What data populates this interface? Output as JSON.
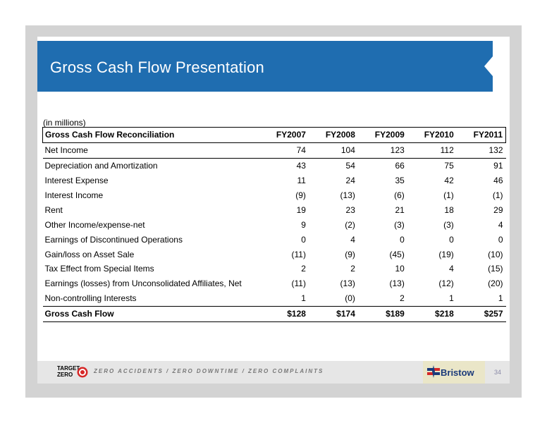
{
  "title": "Gross Cash Flow Presentation",
  "units_note": "(in millions)",
  "table": {
    "header": {
      "label": "Gross Cash Flow Reconciliation",
      "years": [
        "FY2007",
        "FY2008",
        "FY2009",
        "FY2010",
        "FY2011"
      ]
    },
    "rows": [
      {
        "label": "Net Income",
        "values": [
          "74",
          "104",
          "123",
          "112",
          "132"
        ]
      },
      {
        "label": "Depreciation and Amortization",
        "values": [
          "43",
          "54",
          "66",
          "75",
          "91"
        ]
      },
      {
        "label": "Interest Expense",
        "values": [
          "11",
          "24",
          "35",
          "42",
          "46"
        ]
      },
      {
        "label": "Interest Income",
        "values": [
          "(9)",
          "(13)",
          "(6)",
          "(1)",
          "(1)"
        ]
      },
      {
        "label": "Rent",
        "values": [
          "19",
          "23",
          "21",
          "18",
          "29"
        ]
      },
      {
        "label": "Other Income/expense-net",
        "values": [
          "9",
          "(2)",
          "(3)",
          "(3)",
          "4"
        ]
      },
      {
        "label": "Earnings of Discontinued Operations",
        "values": [
          "0",
          "4",
          "0",
          "0",
          "0"
        ]
      },
      {
        "label": "Gain/loss on Asset Sale",
        "values": [
          "(11)",
          "(9)",
          "(45)",
          "(19)",
          "(10)"
        ]
      },
      {
        "label": "Tax Effect from Special Items",
        "values": [
          "2",
          "2",
          "10",
          "4",
          "(15)"
        ]
      },
      {
        "label": "Earnings (losses) from Unconsolidated Affiliates, Net",
        "values": [
          "(11)",
          "(13)",
          "(13)",
          "(12)",
          "(20)"
        ]
      },
      {
        "label": "Non-controlling Interests",
        "values": [
          "1",
          "(0)",
          "2",
          "1",
          "1"
        ]
      }
    ],
    "total": {
      "label": "Gross Cash Flow",
      "values": [
        "$128",
        "$174",
        "$189",
        "$218",
        "$257"
      ]
    }
  },
  "footer": {
    "logo_line1": "TARGET",
    "logo_line2": "ZERO",
    "slogan": "ZERO ACCIDENTS / ZERO DOWNTIME / ZERO COMPLAINTS",
    "brand": "Bristow",
    "page_number": "34"
  },
  "colors": {
    "title_bar": "#1f6db0",
    "frame": "#d3d3d3",
    "brand_text": "#1b3a7a",
    "target_red": "#d62828"
  }
}
